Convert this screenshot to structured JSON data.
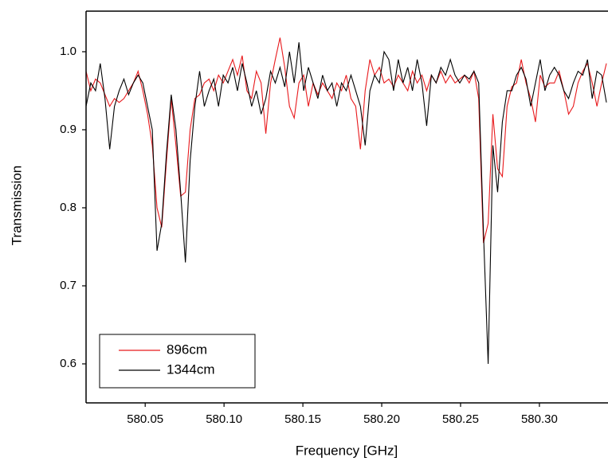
{
  "chart_data": {
    "type": "line",
    "xlabel": "Frequency [GHz]",
    "ylabel": "Transmission",
    "x": [
      580.0125,
      580.0155,
      580.0185,
      580.0215,
      580.0245,
      580.0275,
      580.0305,
      580.0335,
      580.0365,
      580.0395,
      580.0425,
      580.0455,
      580.0485,
      580.0515,
      580.0545,
      580.0575,
      580.0605,
      580.0635,
      580.0665,
      580.0695,
      580.0725,
      580.0755,
      580.0785,
      580.0815,
      580.0845,
      580.0875,
      580.0905,
      580.0935,
      580.0965,
      580.0995,
      580.1025,
      580.1055,
      580.1085,
      580.1115,
      580.1145,
      580.1175,
      580.1205,
      580.1235,
      580.1265,
      580.1295,
      580.1325,
      580.1355,
      580.1385,
      580.1415,
      580.1445,
      580.1475,
      580.1505,
      580.1535,
      580.1565,
      580.1595,
      580.1625,
      580.1655,
      580.1685,
      580.1715,
      580.1745,
      580.1775,
      580.1805,
      580.1835,
      580.1865,
      580.1895,
      580.1925,
      580.1955,
      580.1985,
      580.2015,
      580.2045,
      580.2075,
      580.2105,
      580.2135,
      580.2165,
      580.2195,
      580.2225,
      580.2255,
      580.2285,
      580.2315,
      580.2345,
      580.2375,
      580.2405,
      580.2435,
      580.2465,
      580.2495,
      580.2525,
      580.2555,
      580.2585,
      580.2615,
      580.2645,
      580.2675,
      580.2705,
      580.2735,
      580.2765,
      580.2795,
      580.2825,
      580.2855,
      580.2885,
      580.2915,
      580.2945,
      580.2975,
      580.3005,
      580.3035,
      580.3065,
      580.3095,
      580.3125,
      580.3155,
      580.3185,
      580.3215,
      580.3245,
      580.3275,
      580.3305,
      580.3335,
      580.3365,
      580.3395,
      580.3425
    ],
    "series": [
      {
        "name": "896cm",
        "color": "#e8191c",
        "values": [
          0.975,
          0.95,
          0.965,
          0.96,
          0.945,
          0.93,
          0.94,
          0.935,
          0.94,
          0.95,
          0.96,
          0.975,
          0.95,
          0.92,
          0.88,
          0.8,
          0.775,
          0.86,
          0.94,
          0.88,
          0.815,
          0.82,
          0.9,
          0.94,
          0.945,
          0.96,
          0.965,
          0.95,
          0.97,
          0.96,
          0.975,
          0.99,
          0.97,
          0.995,
          0.95,
          0.94,
          0.975,
          0.96,
          0.895,
          0.96,
          0.99,
          1.018,
          0.98,
          0.93,
          0.915,
          0.96,
          0.97,
          0.93,
          0.96,
          0.945,
          0.96,
          0.95,
          0.94,
          0.96,
          0.95,
          0.97,
          0.94,
          0.93,
          0.875,
          0.95,
          0.99,
          0.97,
          0.98,
          0.96,
          0.965,
          0.955,
          0.97,
          0.96,
          0.95,
          0.975,
          0.96,
          0.97,
          0.95,
          0.97,
          0.96,
          0.975,
          0.96,
          0.97,
          0.96,
          0.965,
          0.97,
          0.96,
          0.975,
          0.94,
          0.755,
          0.78,
          0.92,
          0.85,
          0.84,
          0.93,
          0.955,
          0.96,
          0.99,
          0.96,
          0.94,
          0.91,
          0.97,
          0.955,
          0.96,
          0.96,
          0.975,
          0.95,
          0.92,
          0.93,
          0.96,
          0.975,
          0.985,
          0.96,
          0.93,
          0.96,
          0.985
        ]
      },
      {
        "name": "1344cm",
        "color": "#000000",
        "values": [
          0.93,
          0.96,
          0.95,
          0.985,
          0.94,
          0.875,
          0.93,
          0.95,
          0.965,
          0.945,
          0.96,
          0.97,
          0.96,
          0.93,
          0.9,
          0.745,
          0.78,
          0.87,
          0.945,
          0.9,
          0.82,
          0.73,
          0.86,
          0.93,
          0.975,
          0.93,
          0.95,
          0.965,
          0.93,
          0.97,
          0.96,
          0.98,
          0.95,
          0.985,
          0.96,
          0.93,
          0.95,
          0.92,
          0.94,
          0.975,
          0.96,
          0.98,
          0.955,
          1.0,
          0.96,
          1.012,
          0.95,
          0.98,
          0.96,
          0.94,
          0.97,
          0.95,
          0.96,
          0.93,
          0.96,
          0.95,
          0.97,
          0.95,
          0.93,
          0.88,
          0.95,
          0.97,
          0.96,
          1.0,
          0.99,
          0.95,
          0.99,
          0.96,
          0.98,
          0.95,
          0.99,
          0.96,
          0.905,
          0.97,
          0.96,
          0.98,
          0.97,
          0.99,
          0.97,
          0.96,
          0.97,
          0.965,
          0.975,
          0.96,
          0.77,
          0.6,
          0.88,
          0.82,
          0.91,
          0.95,
          0.95,
          0.97,
          0.98,
          0.965,
          0.93,
          0.96,
          0.99,
          0.95,
          0.97,
          0.98,
          0.97,
          0.95,
          0.94,
          0.96,
          0.975,
          0.97,
          0.99,
          0.94,
          0.975,
          0.97,
          0.935
        ]
      }
    ],
    "xlim": [
      580.0125,
      580.3435
    ],
    "xticks": [
      580.05,
      {
        "value": 580.1,
        "label": "580.10"
      },
      580.15,
      {
        "value": 580.2,
        "label": "580.20"
      },
      580.25,
      {
        "value": 580.3,
        "label": "580.30"
      }
    ],
    "ylim": [
      0.55,
      1.052
    ],
    "yticks": [
      0.6,
      0.7,
      0.8,
      0.9,
      {
        "value": 1.0,
        "label": "1.0"
      }
    ],
    "legend": "lower left"
  }
}
